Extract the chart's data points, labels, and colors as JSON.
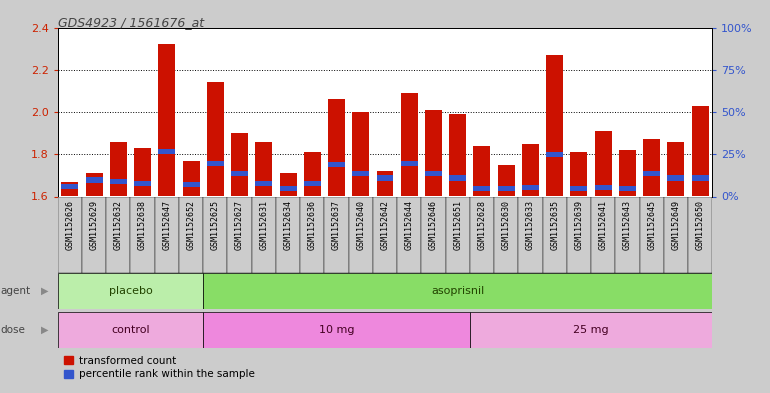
{
  "title": "GDS4923 / 1561676_at",
  "samples": [
    "GSM1152626",
    "GSM1152629",
    "GSM1152632",
    "GSM1152638",
    "GSM1152647",
    "GSM1152652",
    "GSM1152625",
    "GSM1152627",
    "GSM1152631",
    "GSM1152634",
    "GSM1152636",
    "GSM1152637",
    "GSM1152640",
    "GSM1152642",
    "GSM1152644",
    "GSM1152646",
    "GSM1152651",
    "GSM1152628",
    "GSM1152630",
    "GSM1152633",
    "GSM1152635",
    "GSM1152639",
    "GSM1152641",
    "GSM1152643",
    "GSM1152645",
    "GSM1152649",
    "GSM1152650"
  ],
  "red_values": [
    1.67,
    1.71,
    1.86,
    1.83,
    2.32,
    1.77,
    2.14,
    1.9,
    1.86,
    1.71,
    1.81,
    2.06,
    2.0,
    1.72,
    2.09,
    2.01,
    1.99,
    1.84,
    1.75,
    1.85,
    2.27,
    1.81,
    1.91,
    1.82,
    1.87,
    1.86,
    2.03
  ],
  "blue_heights": [
    0.025,
    0.025,
    0.025,
    0.025,
    0.025,
    0.025,
    0.025,
    0.025,
    0.025,
    0.025,
    0.025,
    0.025,
    0.025,
    0.025,
    0.025,
    0.025,
    0.025,
    0.025,
    0.025,
    0.025,
    0.025,
    0.025,
    0.025,
    0.025,
    0.025,
    0.025,
    0.025
  ],
  "blue_bottoms": [
    1.635,
    1.665,
    1.66,
    1.65,
    1.8,
    1.645,
    1.745,
    1.695,
    1.65,
    1.625,
    1.65,
    1.74,
    1.695,
    1.675,
    1.745,
    1.695,
    1.675,
    1.625,
    1.625,
    1.63,
    1.785,
    1.625,
    1.63,
    1.625,
    1.695,
    1.675,
    1.675
  ],
  "ylim_left": [
    1.6,
    2.4
  ],
  "ylim_right": [
    0,
    100
  ],
  "yticks_left": [
    1.6,
    1.8,
    2.0,
    2.2,
    2.4
  ],
  "yticks_right": [
    0,
    25,
    50,
    75,
    100
  ],
  "bar_color_red": "#cc1100",
  "bar_color_blue": "#3355cc",
  "bar_width": 0.7,
  "agent_groups": [
    {
      "label": "placebo",
      "start": 0,
      "end": 5,
      "color": "#bbeeaa"
    },
    {
      "label": "asoprisnil",
      "start": 6,
      "end": 26,
      "color": "#88dd66"
    }
  ],
  "dose_groups": [
    {
      "label": "control",
      "start": 0,
      "end": 5,
      "color": "#eeaadd"
    },
    {
      "label": "10 mg",
      "start": 6,
      "end": 16,
      "color": "#ee88dd"
    },
    {
      "label": "25 mg",
      "start": 17,
      "end": 26,
      "color": "#eeaadd"
    }
  ],
  "bg_color": "#cccccc",
  "plot_bg_color": "#ffffff",
  "xtick_bg": "#cccccc",
  "grid_color": "#000000",
  "title_color": "#444444",
  "left_tick_color": "#cc2200",
  "right_tick_color": "#3355cc",
  "legend_red_label": "transformed count",
  "legend_blue_label": "percentile rank within the sample"
}
